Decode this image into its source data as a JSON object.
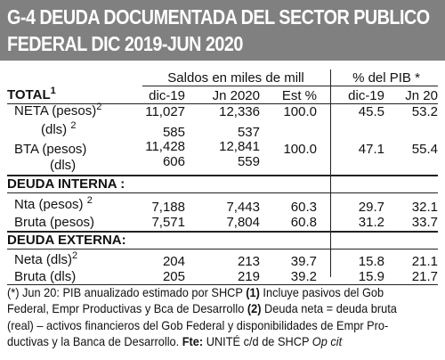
{
  "title": {
    "line1": "G-4 DEUDA DOCUMENTADA DEL SECTOR PUBLICO",
    "line2": "FEDERAL DIC 2019-JUN 2020"
  },
  "group_headers": {
    "saldos": "Saldos en miles de mill",
    "pib": "% del PIB *"
  },
  "total_label": "TOTAL",
  "total_note": "1",
  "columns": [
    "dic-19",
    "Jn 2020",
    "Est %",
    "dic-19",
    "Jn 20"
  ],
  "rows": {
    "neta_pesos": {
      "label": "NETA (pesos)",
      "note": "2",
      "values": [
        "11,027",
        "12,336",
        "100.0",
        "45.5",
        "53.2"
      ]
    },
    "neta_dls": {
      "label": "(dls)",
      "note": "2",
      "values": [
        "585",
        "537",
        "",
        "",
        ""
      ]
    },
    "bta_pesos": {
      "label": "BTA (pesos)",
      "note": "",
      "values": [
        "11,428",
        "12,841",
        "100.0",
        "47.1",
        "55.4"
      ]
    },
    "bta_dls": {
      "label": "(dls)",
      "note": "",
      "values": [
        "606",
        "559",
        "",
        "",
        ""
      ]
    },
    "interna_header": {
      "label": "DEUDA INTERNA :"
    },
    "nta_pesos": {
      "label": "Nta  (pesos)",
      "note": "2",
      "values": [
        "7,188",
        "7,443",
        "60.3",
        "29.7",
        "32.1"
      ]
    },
    "bruta_pesos": {
      "label": "Bruta (pesos)",
      "note": "",
      "values": [
        "7,571",
        "7,804",
        "60.8",
        "31.2",
        "33.7"
      ]
    },
    "externa_header": {
      "label": "DEUDA EXTERNA:"
    },
    "neta_dls_ext": {
      "label": "Neta   (dls)",
      "note": "2",
      "values": [
        "204",
        "213",
        "39.7",
        "15.8",
        "21.1"
      ]
    },
    "bruta_dls_ext": {
      "label": "Bruta  (dls)",
      "note": "",
      "values": [
        "205",
        "219",
        "39.2",
        "15.9",
        "21.7"
      ]
    }
  },
  "footnote": {
    "l1_a": "(*) Jun 20: PIB anualizado estimado por SHCP ",
    "l1_b": "(1)",
    "l1_c": " Incluye pasivos del Gob",
    "l2_a": "Federal, Empr Productivas y Bca de Desarrollo ",
    "l2_b": "(2)",
    "l2_c": " Deuda neta = deuda bruta",
    "l3": "(real) – activos financieros del Gob Federal y disponibilidades de Empr Pro-",
    "l4_a": "ductivas y la Banca de Desarrollo. ",
    "l4_b": "Fte:",
    "l4_c": " UNITÉ c/d de SHCP ",
    "l4_d": "Op cit"
  }
}
